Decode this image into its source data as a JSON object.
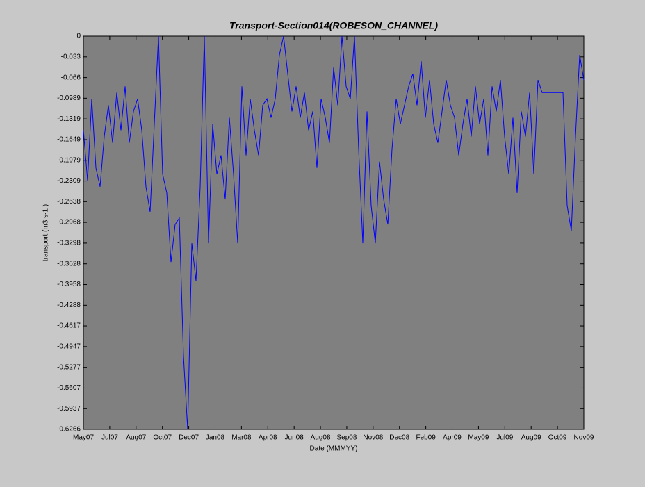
{
  "chart_data": {
    "type": "line",
    "title": "Transport-Section014(ROBESON_CHANNEL)",
    "x_label": "Date (MMMYY)",
    "y_label": "transport (m3 s-1 )",
    "xlim": [
      0,
      30
    ],
    "xticks": [
      {
        "value": 0,
        "label": "May07"
      },
      {
        "value": 1.579,
        "label": "Jul07"
      },
      {
        "value": 3.158,
        "label": "Aug07"
      },
      {
        "value": 4.737,
        "label": "Oct07"
      },
      {
        "value": 6.316,
        "label": "Dec07"
      },
      {
        "value": 7.895,
        "label": "Jan08"
      },
      {
        "value": 9.474,
        "label": "Mar08"
      },
      {
        "value": 11.053,
        "label": "Apr08"
      },
      {
        "value": 12.632,
        "label": "Jun08"
      },
      {
        "value": 14.211,
        "label": "Aug08"
      },
      {
        "value": 15.789,
        "label": "Sep08"
      },
      {
        "value": 17.368,
        "label": "Nov08"
      },
      {
        "value": 18.947,
        "label": "Dec08"
      },
      {
        "value": 20.526,
        "label": "Feb09"
      },
      {
        "value": 22.105,
        "label": "Apr09"
      },
      {
        "value": 23.684,
        "label": "May09"
      },
      {
        "value": 25.263,
        "label": "Jul09"
      },
      {
        "value": 26.842,
        "label": "Aug09"
      },
      {
        "value": 28.421,
        "label": "Oct09"
      },
      {
        "value": 30,
        "label": "Nov09"
      }
    ],
    "ylim": [
      -0.6266,
      0
    ],
    "yticks": [
      0,
      -0.033,
      -0.066,
      -0.0989,
      -0.1319,
      -0.1649,
      -0.1979,
      -0.2309,
      -0.2638,
      -0.2968,
      -0.3298,
      -0.3628,
      -0.3958,
      -0.4288,
      -0.4617,
      -0.4947,
      -0.5277,
      -0.5607,
      -0.5937,
      -0.6266
    ],
    "series": [
      {
        "color": "#0000ff",
        "x": [
          0,
          0.25,
          0.5,
          0.75,
          1,
          1.25,
          1.5,
          1.75,
          2,
          2.25,
          2.5,
          2.75,
          3,
          3.25,
          3.5,
          3.75,
          4,
          4.25,
          4.5,
          4.75,
          5,
          5.25,
          5.5,
          5.75,
          6,
          6.25,
          6.5,
          6.75,
          7,
          7.25,
          7.5,
          7.75,
          8,
          8.25,
          8.5,
          8.75,
          9,
          9.25,
          9.5,
          9.75,
          10,
          10.25,
          10.5,
          10.75,
          11,
          11.25,
          11.5,
          11.75,
          12,
          12.25,
          12.5,
          12.75,
          13,
          13.25,
          13.5,
          13.75,
          14,
          14.25,
          14.5,
          14.75,
          15,
          15.25,
          15.5,
          15.75,
          16,
          16.25,
          16.5,
          16.75,
          17,
          17.25,
          17.5,
          17.75,
          18,
          18.25,
          18.5,
          18.75,
          19,
          19.25,
          19.5,
          19.75,
          20,
          20.25,
          20.5,
          20.75,
          21,
          21.25,
          21.5,
          21.75,
          22,
          22.25,
          22.5,
          22.75,
          23,
          23.25,
          23.5,
          23.75,
          24,
          24.25,
          24.5,
          24.75,
          25,
          25.25,
          25.5,
          25.75,
          26,
          26.25,
          26.5,
          26.75,
          27,
          27.25,
          27.5,
          27.75,
          28,
          28.25,
          28.5,
          28.75,
          29,
          29.25,
          29.5,
          29.75,
          30
        ],
        "values": [
          -0.15,
          -0.23,
          -0.1,
          -0.21,
          -0.24,
          -0.16,
          -0.11,
          -0.17,
          -0.09,
          -0.15,
          -0.08,
          -0.17,
          -0.12,
          -0.1,
          -0.15,
          -0.24,
          -0.28,
          -0.14,
          0,
          -0.22,
          -0.25,
          -0.36,
          -0.3,
          -0.29,
          -0.51,
          -0.6266,
          -0.33,
          -0.39,
          -0.24,
          0,
          -0.33,
          -0.14,
          -0.22,
          -0.19,
          -0.26,
          -0.13,
          -0.22,
          -0.33,
          -0.08,
          -0.19,
          -0.1,
          -0.15,
          -0.19,
          -0.11,
          -0.1,
          -0.13,
          -0.1,
          -0.03,
          0,
          -0.06,
          -0.12,
          -0.08,
          -0.13,
          -0.09,
          -0.15,
          -0.12,
          -0.21,
          -0.1,
          -0.13,
          -0.17,
          -0.05,
          -0.11,
          0,
          -0.08,
          -0.1,
          0,
          -0.18,
          -0.33,
          -0.12,
          -0.27,
          -0.33,
          -0.2,
          -0.26,
          -0.3,
          -0.18,
          -0.1,
          -0.14,
          -0.11,
          -0.08,
          -0.06,
          -0.11,
          -0.04,
          -0.13,
          -0.07,
          -0.14,
          -0.17,
          -0.12,
          -0.07,
          -0.11,
          -0.13,
          -0.19,
          -0.14,
          -0.1,
          -0.16,
          -0.08,
          -0.14,
          -0.1,
          -0.19,
          -0.08,
          -0.12,
          -0.07,
          -0.16,
          -0.22,
          -0.13,
          -0.25,
          -0.12,
          -0.16,
          -0.09,
          -0.22,
          -0.07,
          -0.09,
          -0.09,
          -0.09,
          -0.09,
          -0.09,
          -0.09,
          -0.27,
          -0.31,
          -0.16,
          -0.03,
          -0.07
        ]
      }
    ]
  }
}
